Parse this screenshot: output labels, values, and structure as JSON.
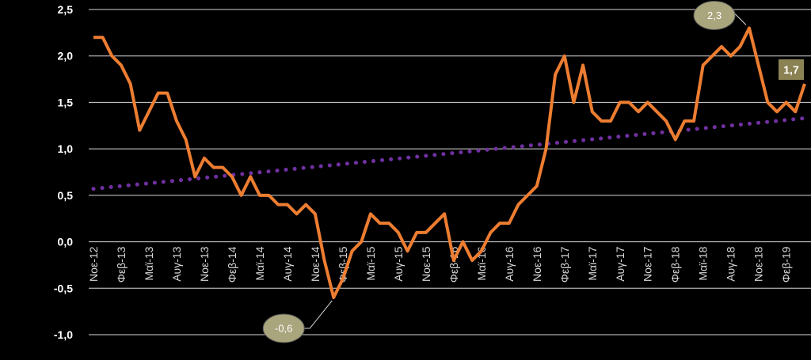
{
  "chart_data": {
    "type": "line",
    "ylim": [
      -1.0,
      2.5
    ],
    "y_ticks": [
      "2,5",
      "2,0",
      "1,5",
      "1,0",
      "0,5",
      "0,0",
      "-0,5",
      "-1,0"
    ],
    "y_tick_values": [
      2.5,
      2.0,
      1.5,
      1.0,
      0.5,
      0.0,
      -0.5,
      -1.0
    ],
    "x_tick_labels": [
      "Νοε-12",
      "Φεβ-13",
      "Μαϊ-13",
      "Αυγ-13",
      "Νοε-13",
      "Φεβ-14",
      "Μαϊ-14",
      "Αυγ-14",
      "Νοε-14",
      "Φεβ-15",
      "Μαϊ-15",
      "Αυγ-15",
      "Νοε-15",
      "Φεβ-16",
      "Μαϊ-16",
      "Αυγ-16",
      "Νοε-16",
      "Φεβ-17",
      "Μαϊ-17",
      "Αυγ-17",
      "Νοε-17",
      "Φεβ-18",
      "Μαϊ-18",
      "Αυγ-18",
      "Νοε-18",
      "Φεβ-19"
    ],
    "x_tick_step_months": 3,
    "grid": true,
    "colors": {
      "background": "#000000",
      "gridline": "#d9d9d9",
      "series": "#ed7d31",
      "trend": "#7030a0",
      "callout_fill": "#a9a57c",
      "label_box_fill": "#8b8254"
    },
    "series": [
      {
        "role": "main",
        "values": [
          2.2,
          2.2,
          2.0,
          1.9,
          1.7,
          1.2,
          1.4,
          1.6,
          1.6,
          1.3,
          1.1,
          0.7,
          0.9,
          0.8,
          0.8,
          0.7,
          0.5,
          0.7,
          0.5,
          0.5,
          0.4,
          0.4,
          0.3,
          0.4,
          0.3,
          -0.2,
          -0.6,
          -0.4,
          -0.1,
          0.0,
          0.3,
          0.2,
          0.2,
          0.1,
          -0.1,
          0.1,
          0.1,
          0.2,
          0.3,
          -0.2,
          0.0,
          -0.2,
          -0.1,
          0.1,
          0.2,
          0.2,
          0.4,
          0.5,
          0.6,
          1.0,
          1.8,
          2.0,
          1.5,
          1.9,
          1.4,
          1.3,
          1.3,
          1.5,
          1.5,
          1.4,
          1.5,
          1.4,
          1.3,
          1.1,
          1.3,
          1.3,
          1.9,
          2.0,
          2.1,
          2.0,
          2.1,
          2.3,
          1.9,
          1.5,
          1.4,
          1.5,
          1.4,
          1.7
        ]
      },
      {
        "role": "trend",
        "style": "dotted",
        "start": 0.57,
        "end": 1.33
      }
    ],
    "annotations": [
      {
        "text": "2,3",
        "style": "ellipse-callout"
      },
      {
        "text": "1,7",
        "style": "box-label"
      },
      {
        "text": "-0,6",
        "style": "ellipse-callout"
      }
    ]
  }
}
